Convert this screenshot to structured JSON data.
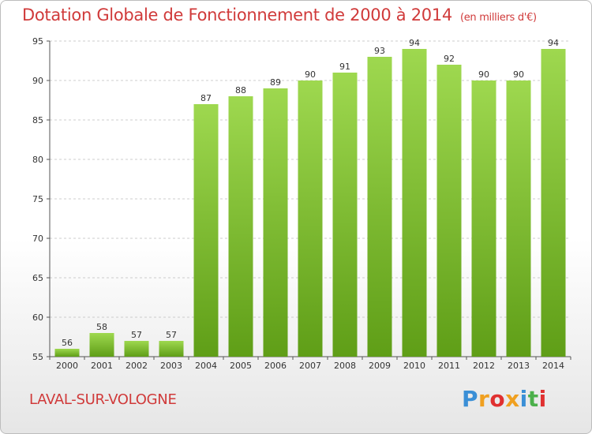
{
  "title": "Dotation Globale de Fonctionnement de 2000 à 2014",
  "subtitle": "(en milliers d'€)",
  "commune": "LAVAL-SUR-VOLOGNE",
  "logo": {
    "text": "Proxiti",
    "colors": [
      "#3a8fd6",
      "#f0a020",
      "#e03030",
      "#f0a020",
      "#3a8fd6",
      "#4bb04b",
      "#e03030"
    ]
  },
  "colors": {
    "title": "#d03a3a",
    "bar_top": "#9ed84f",
    "bar_bottom": "#5f9e17",
    "grid": "#cccccc"
  },
  "chart_data": {
    "type": "bar",
    "title": "Dotation Globale de Fonctionnement de 2000 à 2014",
    "subtitle": "(en milliers d'€)",
    "xlabel": "",
    "ylabel": "",
    "categories": [
      "2000",
      "2001",
      "2002",
      "2003",
      "2004",
      "2005",
      "2006",
      "2007",
      "2008",
      "2009",
      "2010",
      "2011",
      "2012",
      "2013",
      "2014"
    ],
    "values": [
      56,
      58,
      57,
      57,
      87,
      88,
      89,
      90,
      91,
      93,
      94,
      92,
      90,
      90,
      94
    ],
    "ylim": [
      55,
      95
    ],
    "yticks": [
      55,
      60,
      65,
      70,
      75,
      80,
      85,
      90,
      95
    ],
    "grid": true,
    "legend": "none"
  }
}
